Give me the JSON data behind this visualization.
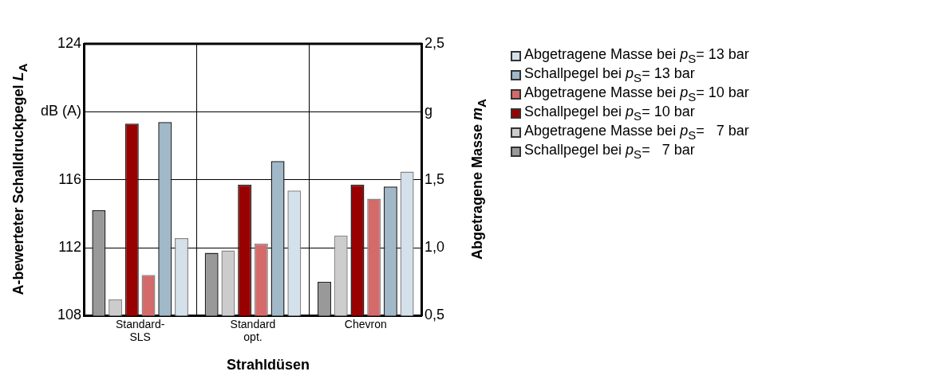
{
  "chart_data": {
    "type": "bar",
    "xlabel": "Strahldüsen",
    "ylabel": "A-bewerteter Schalldruckpegel L$_{A}$",
    "y2label": "Abgetragene Masse m$_{A}$",
    "categories": [
      "Standard-SLS",
      "Standard opt.",
      "Chevron"
    ],
    "series": [
      {
        "name": "Schallpegel bei p$_{S}$=   7 bar",
        "color": "#999999",
        "values": [
          114.2,
          111.7,
          110.0
        ]
      },
      {
        "name": "Abgetragene Masse bei p$_{S}$=   7 bar",
        "color": "#cccccc",
        "axis": "y2",
        "values": [
          0.62,
          0.98,
          1.09
        ]
      },
      {
        "name": "Schallpegel bei p$_{S}$= 10 bar",
        "color": "#990000",
        "values": [
          119.3,
          115.7,
          115.7
        ]
      },
      {
        "name": "Abgetragene Masse bei p$_{S}$= 10 bar",
        "color": "#d46a6a",
        "axis": "y2",
        "values": [
          0.8,
          1.03,
          1.36
        ]
      },
      {
        "name": "Schallpegel bei p$_{S}$= 13 bar",
        "color": "#a0b8c8",
        "values": [
          119.4,
          117.1,
          115.6
        ]
      },
      {
        "name": "Abgetragene Masse bei p$_{S}$= 13 bar",
        "color": "#d4e0ea",
        "axis": "y2",
        "values": [
          1.07,
          1.42,
          1.56
        ]
      }
    ],
    "ylim": [
      108,
      124
    ],
    "yticks": [
      108,
      112,
      116,
      {
        "value": 120,
        "label": "dB (A)"
      },
      124
    ],
    "y2lim": [
      0.5,
      2.5
    ],
    "y2ticks": [
      {
        "value": 0.5,
        "label": "0,5"
      },
      {
        "value": 1.0,
        "label": "1,0"
      },
      {
        "value": 1.5,
        "label": "1,5"
      },
      {
        "value": 2.0,
        "label": "g"
      },
      {
        "value": 2.5,
        "label": "2,5"
      }
    ],
    "grid": true,
    "legend": "right"
  }
}
